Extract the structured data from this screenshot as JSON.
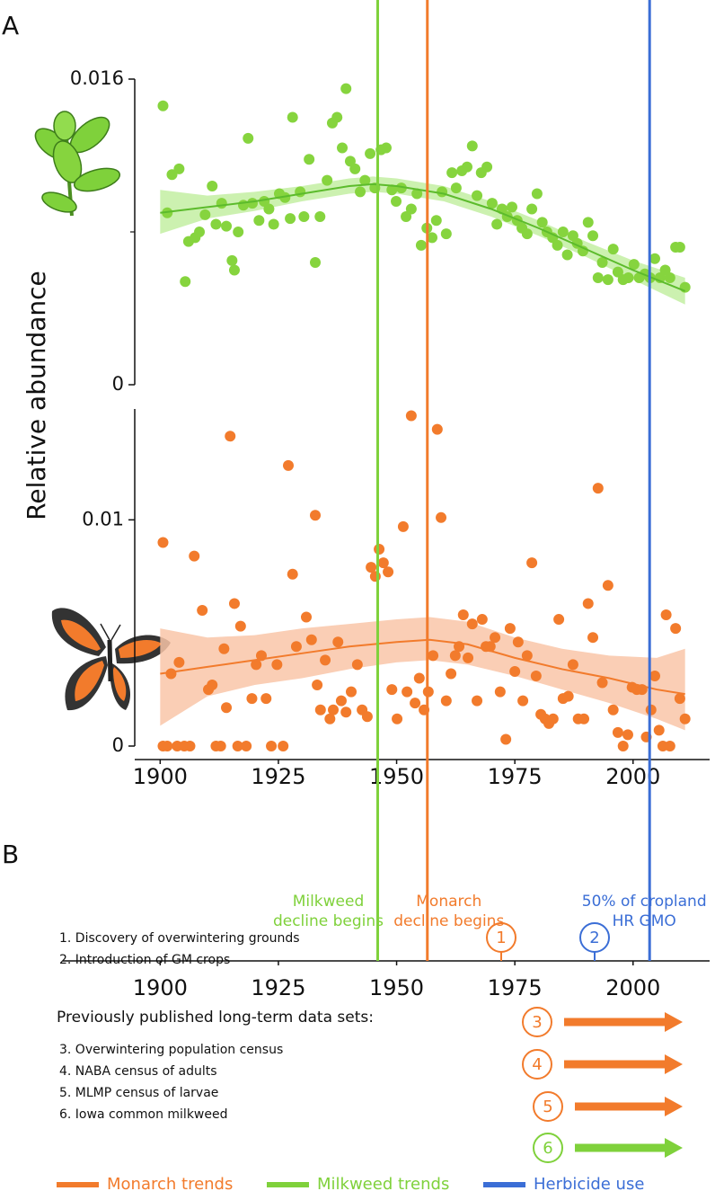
{
  "panel_labels": [
    "A",
    "B"
  ],
  "y_label": "Relative abundance",
  "chart_data": [
    {
      "type": "scatter",
      "color": "#86d43e",
      "fit_color": "#5cbb2c",
      "band_color": "#c3eea2",
      "xlim": [
        1895,
        2016
      ],
      "ylim": [
        0,
        0.016
      ],
      "yticks": [
        0,
        0.016
      ],
      "minor_yticks": [
        0.008
      ],
      "x": [
        1900.6,
        1901.5,
        1902.5,
        1904,
        1905.3,
        1906,
        1907.4,
        1908.3,
        1909.5,
        1911,
        1911.8,
        1913,
        1914,
        1915.2,
        1915.7,
        1916.5,
        1917.6,
        1918.6,
        1919.5,
        1920.9,
        1922,
        1923,
        1924,
        1925.2,
        1926.4,
        1927.5,
        1928,
        1929.6,
        1930.4,
        1931.5,
        1932.8,
        1933.8,
        1935.3,
        1936.4,
        1937.4,
        1938.5,
        1939.3,
        1940.2,
        1941.2,
        1942.3,
        1943.3,
        1944.4,
        1945.4,
        1946.7,
        1947.8,
        1949,
        1949.9,
        1951,
        1952,
        1953.1,
        1954.3,
        1955.2,
        1956.4,
        1957.5,
        1958.4,
        1959.6,
        1960.5,
        1961.7,
        1962.6,
        1963.8,
        1964.9,
        1966,
        1967,
        1967.9,
        1969.1,
        1970.2,
        1971.2,
        1972.3,
        1973.4,
        1974.4,
        1975.5,
        1976.5,
        1977.6,
        1978.6,
        1979.7,
        1980.8,
        1981.8,
        1983,
        1984,
        1985.2,
        1986.1,
        1987.3,
        1988.2,
        1989.4,
        1990.5,
        1991.5,
        1992.6,
        1993.5,
        1994.7,
        1995.8,
        1996.8,
        1997.9,
        1999,
        2000.2,
        2001.3,
        2002.5,
        2003.6,
        2004.6,
        2005.7,
        2006.8,
        2007.8,
        2009,
        2009.9,
        2011
      ],
      "values": [
        0.0146,
        0.009,
        0.011,
        0.0113,
        0.0054,
        0.0075,
        0.0077,
        0.008,
        0.0089,
        0.0104,
        0.0084,
        0.0095,
        0.0083,
        0.0065,
        0.006,
        0.008,
        0.0094,
        0.0129,
        0.0095,
        0.0086,
        0.0096,
        0.0092,
        0.0084,
        0.01,
        0.0098,
        0.0087,
        0.014,
        0.0101,
        0.0088,
        0.0118,
        0.0064,
        0.0088,
        0.0107,
        0.0137,
        0.014,
        0.0124,
        0.0155,
        0.0117,
        0.0113,
        0.0101,
        0.0107,
        0.0121,
        0.0103,
        0.0123,
        0.0124,
        0.0102,
        0.0096,
        0.0103,
        0.0088,
        0.0092,
        0.01,
        0.0073,
        0.0082,
        0.0077,
        0.0086,
        0.0101,
        0.0079,
        0.0111,
        0.0103,
        0.0112,
        0.0114,
        0.0125,
        0.0099,
        0.0111,
        0.0114,
        0.0095,
        0.0084,
        0.0092,
        0.0088,
        0.0093,
        0.0086,
        0.0082,
        0.0079,
        0.0092,
        0.01,
        0.0085,
        0.008,
        0.0077,
        0.0073,
        0.008,
        0.0068,
        0.0078,
        0.0074,
        0.007,
        0.0085,
        0.0078,
        0.0056,
        0.0064,
        0.0055,
        0.0071,
        0.0059,
        0.0055,
        0.0056,
        0.0063,
        0.0056,
        0.0058,
        0.0056,
        0.0066,
        0.0056,
        0.006,
        0.0056,
        0.0072,
        0.0072,
        0.0051
      ],
      "fit": {
        "x": [
          1900,
          1910,
          1920,
          1930,
          1940,
          1945,
          1950,
          1960,
          1970,
          1980,
          1990,
          2000,
          2011
        ],
        "values": [
          0.009,
          0.0093,
          0.0096,
          0.01,
          0.0104,
          0.0105,
          0.0104,
          0.01,
          0.0092,
          0.0082,
          0.0071,
          0.006,
          0.0049
        ],
        "lower": [
          0.0079,
          0.0087,
          0.0091,
          0.0096,
          0.01,
          0.0101,
          0.01,
          0.0096,
          0.0088,
          0.0078,
          0.0067,
          0.0055,
          0.0042
        ],
        "upper": [
          0.0102,
          0.0099,
          0.0101,
          0.0104,
          0.0108,
          0.0109,
          0.0108,
          0.0104,
          0.0096,
          0.0086,
          0.0075,
          0.0065,
          0.0056
        ]
      }
    },
    {
      "type": "scatter",
      "color": "#f27b2c",
      "fit_color": "#f27b2c",
      "band_color": "#f9c6a8",
      "xlim": [
        1895,
        2016
      ],
      "ylim": [
        0,
        0.0149
      ],
      "yticks": [
        0,
        0.01
      ],
      "xticks": [
        1900,
        1925,
        1950,
        1975,
        2000
      ],
      "x": [
        1900.6,
        1900.6,
        1901.5,
        1902.3,
        1903.6,
        1904,
        1905.1,
        1906.3,
        1907.2,
        1908.9,
        1910.2,
        1911,
        1911.8,
        1912.8,
        1913.5,
        1914,
        1914.8,
        1915.7,
        1916.4,
        1917,
        1918.2,
        1919.4,
        1920.3,
        1921.4,
        1922.4,
        1923.5,
        1924.7,
        1926,
        1927.1,
        1928,
        1928.8,
        1930.9,
        1932,
        1932.8,
        1933.2,
        1933.9,
        1934.9,
        1935.9,
        1936.6,
        1937.6,
        1938.3,
        1939.3,
        1940.4,
        1941.7,
        1942.7,
        1943.8,
        1944.6,
        1945.5,
        1946.3,
        1947.2,
        1948.2,
        1949,
        1950.1,
        1951.4,
        1952.2,
        1953.1,
        1953.9,
        1954.8,
        1955.8,
        1956.7,
        1957.7,
        1958.6,
        1959.4,
        1960.5,
        1961.5,
        1962.4,
        1963.2,
        1964.1,
        1965.1,
        1966,
        1967,
        1968.1,
        1968.9,
        1969.8,
        1970.8,
        1971.9,
        1973.1,
        1974,
        1975,
        1975.7,
        1976.7,
        1977.6,
        1978.6,
        1979.5,
        1980.5,
        1981.4,
        1982.2,
        1983.1,
        1984.3,
        1985.2,
        1986.3,
        1987.3,
        1988.4,
        1989.6,
        1990.5,
        1991.5,
        1992.6,
        1993.5,
        1994.7,
        1995.8,
        1996.8,
        1997.9,
        1998.9,
        1999.8,
        2000.8,
        2001.9,
        2002.8,
        2003.8,
        2004.6,
        2005.5,
        2006.3,
        2007,
        2007.8,
        2009,
        2009.9,
        2011
      ],
      "values": [
        0.009,
        0,
        0,
        0.0032,
        0,
        0.0037,
        0,
        0,
        0.0084,
        0.006,
        0.0025,
        0.0027,
        0,
        0,
        0.0043,
        0.0017,
        0.0137,
        0.0063,
        0,
        0.0053,
        0,
        0.0021,
        0.0036,
        0.004,
        0.0021,
        0,
        0.0036,
        0,
        0.0124,
        0.0076,
        0.0044,
        0.0057,
        0.0047,
        0.0102,
        0.0027,
        0.0016,
        0.0038,
        0.0012,
        0.0016,
        0.0046,
        0.002,
        0.0015,
        0.0024,
        0.0036,
        0.0016,
        0.0013,
        0.0079,
        0.0075,
        0.0087,
        0.0081,
        0.0077,
        0.0025,
        0.0012,
        0.0097,
        0.0024,
        0.0146,
        0.0019,
        0.003,
        0.0016,
        0.0024,
        0.004,
        0.014,
        0.0101,
        0.002,
        0.0032,
        0.004,
        0.0044,
        0.0058,
        0.0039,
        0.0054,
        0.002,
        0.0056,
        0.0044,
        0.0044,
        0.0048,
        0.0024,
        0.0003,
        0.0052,
        0.0033,
        0.0046,
        0.002,
        0.004,
        0.0081,
        0.0031,
        0.0014,
        0.0012,
        0.001,
        0.0012,
        0.0056,
        0.0021,
        0.0022,
        0.0036,
        0.0012,
        0.0012,
        0.0063,
        0.0048,
        0.0114,
        0.0028,
        0.0071,
        0.0016,
        0.0006,
        0,
        0.0005,
        0.0026,
        0.0025,
        0.0025,
        0.0004,
        0.0016,
        0.0031,
        0.0007,
        0,
        0.0058,
        0,
        0.0052,
        0.0021,
        0.0012
      ],
      "fit": {
        "x": [
          1900,
          1910,
          1920,
          1930,
          1940,
          1950,
          1957,
          1965,
          1975,
          1985,
          1995,
          2005,
          2011
        ],
        "values": [
          0.0032,
          0.0035,
          0.0038,
          0.0041,
          0.0044,
          0.0046,
          0.0047,
          0.0045,
          0.0039,
          0.0034,
          0.003,
          0.0025,
          0.0023
        ],
        "lower": [
          0.0009,
          0.0022,
          0.0027,
          0.003,
          0.0034,
          0.0037,
          0.0038,
          0.0036,
          0.0031,
          0.0025,
          0.0019,
          0.0012,
          0.0007
        ],
        "upper": [
          0.0052,
          0.0048,
          0.0049,
          0.0052,
          0.0054,
          0.0056,
          0.0057,
          0.0055,
          0.0048,
          0.0043,
          0.004,
          0.0039,
          0.0043
        ]
      }
    }
  ],
  "reference_lines": [
    {
      "x": 1946,
      "color": "#7fd13b",
      "label": [
        "Milkweed",
        "decline begins"
      ]
    },
    {
      "x": 1956.5,
      "color": "#f27b2c",
      "label": [
        "Monarch",
        "decline begins"
      ]
    },
    {
      "x": 2003.5,
      "color": "#3b6ed6",
      "label": [
        "50% of cropland",
        "HR GMO"
      ]
    }
  ],
  "timeline": {
    "xticks": [
      1900,
      1925,
      1950,
      1975,
      2000
    ]
  },
  "events": [
    {
      "marker": "1",
      "text": "1. Discovery of overwintering grounds",
      "color": "#f27b2c"
    },
    {
      "marker": "2",
      "text": "2. Introduction of GM crops",
      "color": "#3b6ed6"
    }
  ],
  "datasets_title": "Previously published long-term data sets:",
  "datasets": [
    {
      "marker": "3",
      "text": "3. Overwintering population census",
      "color": "#f27b2c"
    },
    {
      "marker": "4",
      "text": "4. NABA census of adults",
      "color": "#f27b2c"
    },
    {
      "marker": "5",
      "text": "5. MLMP census of larvae",
      "color": "#f27b2c"
    },
    {
      "marker": "6",
      "text": "6. Iowa common milkweed",
      "color": "#7fd13b"
    }
  ],
  "legend": [
    {
      "label": "Monarch trends",
      "color": "#f27b2c"
    },
    {
      "label": "Milkweed trends",
      "color": "#7fd13b"
    },
    {
      "label": "Herbicide use",
      "color": "#3b6ed6"
    }
  ]
}
